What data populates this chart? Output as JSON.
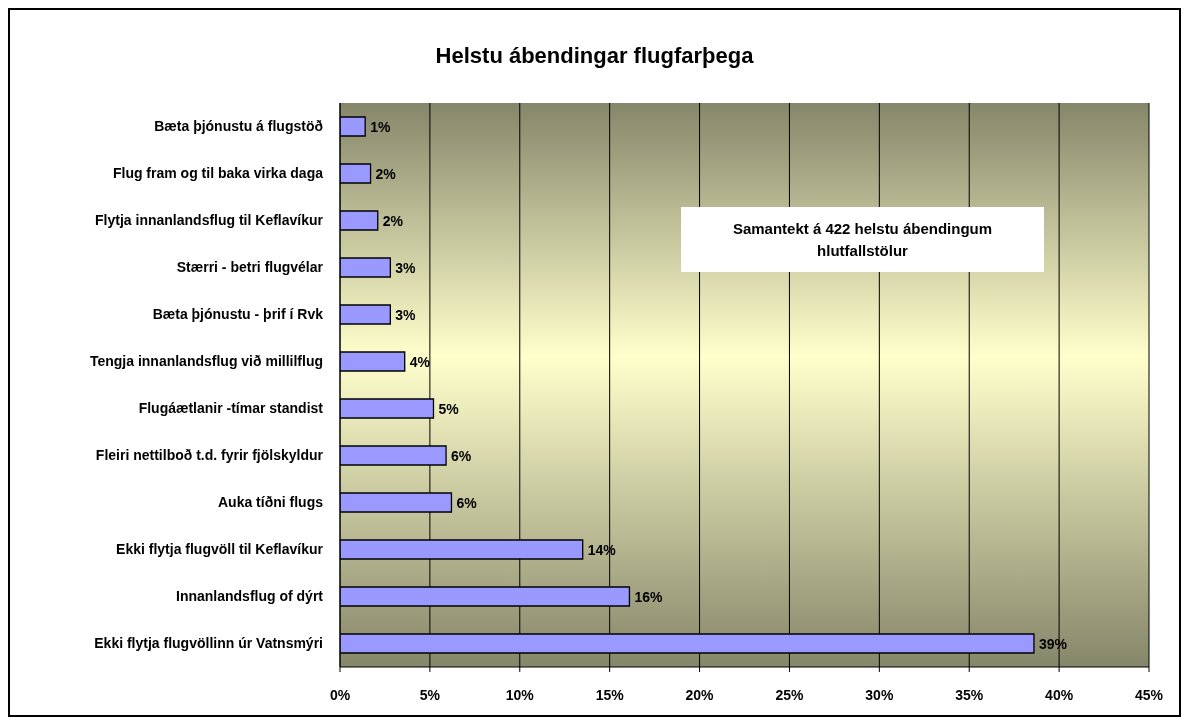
{
  "chart_data": {
    "type": "bar",
    "orientation": "horizontal",
    "title": "Helstu ábendingar flugfarþega",
    "categories": [
      "Bæta þjónustu á flugstöð",
      "Flug fram og til baka virka daga",
      "Flytja innanlandsflug til Keflavíkur",
      "Stærri - betri flugvélar",
      "Bæta þjónustu - þrif í Rvk",
      "Tengja innanlandsflug við millilflug",
      "Flugáætlanir -tímar standist",
      "Fleiri nettilboð t.d. fyrir fjölskyldur",
      "Auka tíðni flugs",
      "Ekki flytja flugvöll til Keflavíkur",
      "Innanlandsflug of dýrt",
      "Ekki flytja flugvöllinn úr Vatnsmýri"
    ],
    "values": [
      1.4,
      1.7,
      2.1,
      2.8,
      2.8,
      3.6,
      5.2,
      5.9,
      6.2,
      13.5,
      16.1,
      38.6
    ],
    "value_labels": [
      "1%",
      "2%",
      "2%",
      "3%",
      "3%",
      "4%",
      "5%",
      "6%",
      "6%",
      "14%",
      "16%",
      "39%"
    ],
    "color": "#9999ff",
    "xlim": [
      0,
      45
    ],
    "xticks": [
      {
        "value": 0,
        "label": "0%"
      },
      {
        "value": 5,
        "label": "5%"
      },
      {
        "value": 10,
        "label": "10%"
      },
      {
        "value": 15,
        "label": "15%"
      },
      {
        "value": 20,
        "label": "20%"
      },
      {
        "value": 25,
        "label": "25%"
      },
      {
        "value": 30,
        "label": "30%"
      },
      {
        "value": 35,
        "label": "35%"
      },
      {
        "value": 40,
        "label": "40%"
      },
      {
        "value": 45,
        "label": "45%"
      }
    ],
    "grid": "x",
    "annotations": [
      "Samantekt á 422 helstu ábendingum\nhlutfallstölur"
    ]
  }
}
